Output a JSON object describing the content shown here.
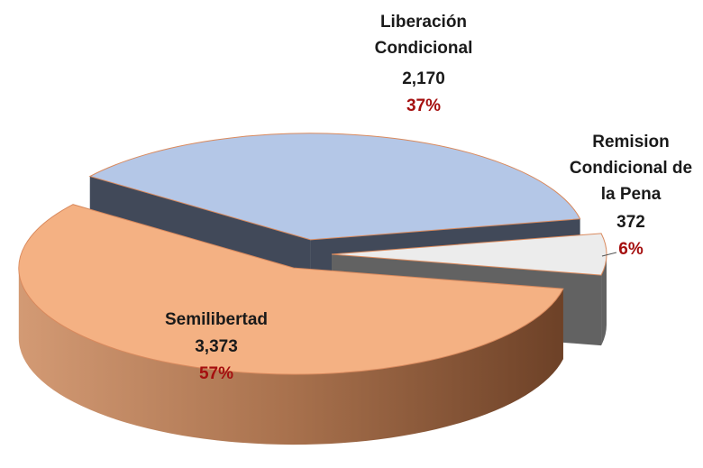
{
  "chart_data": {
    "type": "pie3d",
    "categories": [
      "Liberación\nCondicional",
      "Remision\nCondicional de\nla Pena",
      "Semilibertad"
    ],
    "values": [
      2170,
      372,
      3373
    ],
    "value_labels": [
      "2,170",
      "372",
      "3,373"
    ],
    "percents": [
      37,
      6,
      57
    ],
    "percent_labels": [
      "37%",
      "6%",
      "57%"
    ],
    "colors": [
      "#b4c7e7",
      "#ececec",
      "#f4b183"
    ],
    "side_colors": [
      "#414959",
      "#626262",
      "#8e5a3a"
    ]
  }
}
